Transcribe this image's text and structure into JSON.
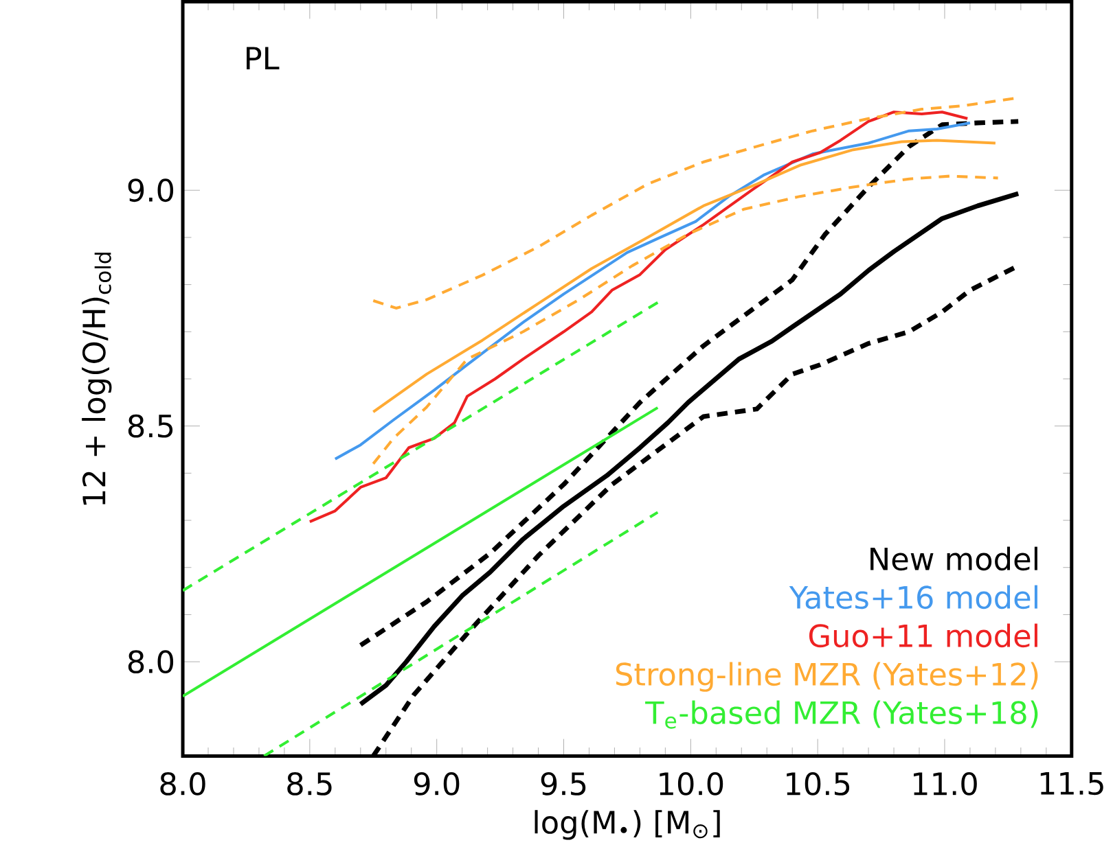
{
  "chart_data": {
    "type": "line",
    "xlabel": "log(M$_{•}$) [M$_{⊙}$]",
    "ylabel": "12 + log(O/H)$_{cold}$",
    "annotations": [
      "PL"
    ],
    "xlim": [
      8.0,
      11.5
    ],
    "ylim": [
      7.8,
      9.4
    ],
    "xticks": [
      {
        "value": 8,
        "label": "8.0"
      },
      {
        "value": 8.5,
        "label": "8.5"
      },
      {
        "value": 9,
        "label": "9.0"
      },
      {
        "value": 9.5,
        "label": "9.5"
      },
      {
        "value": 10,
        "label": "10.0"
      },
      {
        "value": 10.5,
        "label": "10.5"
      },
      {
        "value": 11,
        "label": "11.0"
      },
      {
        "value": 11.5,
        "label": "11.5"
      }
    ],
    "yticks": [
      {
        "value": 8,
        "label": "8.0"
      },
      {
        "value": 8.5,
        "label": "8.5"
      },
      {
        "value": 9,
        "label": "9.0"
      }
    ],
    "legend": "bottom right",
    "grid": false,
    "marker": "none",
    "series": [
      {
        "name": "New model",
        "color": "#000000",
        "line_style": "solid",
        "x": [
          8.7,
          8.8,
          8.88,
          8.99,
          9.1,
          9.21,
          9.34,
          9.5,
          9.67,
          9.8,
          9.91,
          9.99,
          10.19,
          10.32,
          10.4,
          10.59,
          10.7,
          10.8,
          10.99,
          11.13,
          11.29
        ],
        "values": [
          7.91,
          7.95,
          8.0,
          8.075,
          8.14,
          8.19,
          8.26,
          8.33,
          8.395,
          8.454,
          8.507,
          8.55,
          8.642,
          8.68,
          8.71,
          8.78,
          8.83,
          8.87,
          8.94,
          8.967,
          8.993
        ]
      },
      {
        "color": "#000000",
        "line_style": "dashed",
        "x": [
          8.7,
          8.96,
          9.21,
          9.5,
          9.8,
          10.05,
          10.4,
          10.53,
          10.7,
          10.86,
          10.99,
          11.13,
          11.29
        ],
        "values": [
          8.035,
          8.127,
          8.23,
          8.376,
          8.55,
          8.67,
          8.81,
          8.907,
          9.007,
          9.093,
          9.139,
          9.143,
          9.146
        ]
      },
      {
        "color": "#000000",
        "line_style": "dashed",
        "x": [
          8.75,
          8.91,
          9.12,
          9.4,
          9.69,
          10.05,
          10.26,
          10.4,
          10.51,
          10.7,
          10.86,
          10.99,
          11.1,
          11.29
        ],
        "values": [
          7.8,
          7.93,
          8.06,
          8.225,
          8.376,
          8.52,
          8.536,
          8.61,
          8.63,
          8.675,
          8.7,
          8.742,
          8.788,
          8.84
        ]
      },
      {
        "name": "Yates+16 model",
        "color": "#4499ee",
        "line_style": "solid",
        "x": [
          8.6,
          8.7,
          8.83,
          8.99,
          9.12,
          9.34,
          9.5,
          9.75,
          9.88,
          10.02,
          10.15,
          10.29,
          10.48,
          10.7,
          10.86,
          10.97,
          11.1
        ],
        "values": [
          8.43,
          8.46,
          8.513,
          8.576,
          8.63,
          8.72,
          8.78,
          8.868,
          8.9,
          8.934,
          8.987,
          9.033,
          9.077,
          9.1,
          9.126,
          9.13,
          9.143
        ]
      },
      {
        "name": "Guo+11 model",
        "color": "#ee2222",
        "line_style": "solid",
        "x": [
          8.5,
          8.6,
          8.7,
          8.8,
          8.89,
          8.99,
          9.07,
          9.12,
          9.23,
          9.34,
          9.5,
          9.61,
          9.69,
          9.8,
          9.9,
          10.05,
          10.24,
          10.4,
          10.51,
          10.59,
          10.7,
          10.8,
          10.91,
          10.99,
          11.09
        ],
        "values": [
          8.297,
          8.32,
          8.37,
          8.39,
          8.454,
          8.474,
          8.507,
          8.563,
          8.6,
          8.642,
          8.7,
          8.742,
          8.788,
          8.821,
          8.874,
          8.927,
          9.0,
          9.06,
          9.08,
          9.106,
          9.146,
          9.166,
          9.162,
          9.166,
          9.152
        ]
      },
      {
        "name": "Strong-line MZR (Yates+12)",
        "color": "#ffaa33",
        "line_style": "solid",
        "x": [
          8.75,
          8.96,
          9.18,
          9.4,
          9.61,
          9.83,
          10.05,
          10.26,
          10.43,
          10.64,
          10.83,
          10.97,
          11.2
        ],
        "values": [
          8.53,
          8.61,
          8.682,
          8.76,
          8.834,
          8.9,
          8.967,
          9.013,
          9.053,
          9.086,
          9.103,
          9.106,
          9.1
        ]
      },
      {
        "color": "#ffaa33",
        "line_style": "dashed",
        "x": [
          8.75,
          8.84,
          8.96,
          9.18,
          9.4,
          9.61,
          9.83,
          10.05,
          10.26,
          10.48,
          10.7,
          10.91,
          11.07,
          11.29
        ],
        "values": [
          8.766,
          8.75,
          8.768,
          8.82,
          8.88,
          8.947,
          9.013,
          9.06,
          9.093,
          9.126,
          9.152,
          9.172,
          9.179,
          9.196
        ]
      },
      {
        "color": "#ffaa33",
        "line_style": "dashed",
        "x": [
          8.75,
          8.83,
          8.96,
          9.12,
          9.34,
          9.56,
          9.77,
          9.99,
          10.21,
          10.43,
          10.64,
          10.86,
          11.02,
          11.21
        ],
        "values": [
          8.42,
          8.474,
          8.54,
          8.642,
          8.7,
          8.768,
          8.84,
          8.907,
          8.96,
          8.987,
          9.007,
          9.024,
          9.03,
          9.026
        ]
      },
      {
        "name": "T$_{e}$-based MZR (Yates+18)",
        "color": "#33ee33",
        "line_style": "solid",
        "x": [
          8.0,
          9.87
        ],
        "values": [
          7.927,
          8.539
        ]
      },
      {
        "color": "#33ee33",
        "line_style": "dashed",
        "x": [
          8.0,
          9.87
        ],
        "values": [
          8.151,
          8.762
        ]
      },
      {
        "color": "#33ee33",
        "line_style": "dashed",
        "x": [
          8.32,
          9.87
        ],
        "values": [
          7.8,
          8.317
        ]
      }
    ]
  }
}
